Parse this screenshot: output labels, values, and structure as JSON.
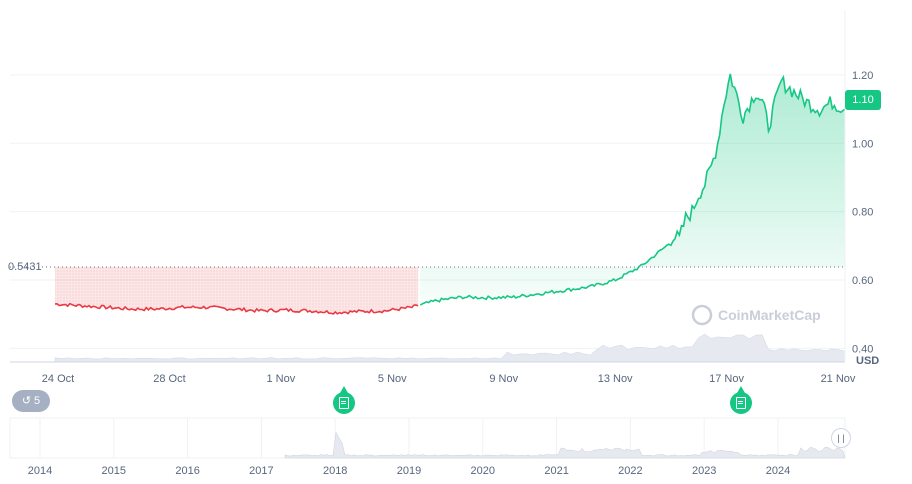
{
  "chart_data": {
    "type": "line",
    "unit": "USD",
    "base_price": "0.5431",
    "current_price": "1.10",
    "y_ticks": [
      "0.40",
      "0.60",
      "0.80",
      "1.00",
      "1.20"
    ],
    "ylim": [
      0.36,
      1.39
    ],
    "x_ticks": [
      "24 Oct",
      "28 Oct",
      "1 Nov",
      "5 Nov",
      "9 Nov",
      "13 Nov",
      "17 Nov",
      "21 Nov"
    ],
    "series": [
      {
        "x": [
          0,
          2,
          4,
          6,
          8,
          10,
          12,
          14,
          16,
          18,
          20,
          22,
          24,
          26,
          28,
          29,
          30,
          32,
          34,
          36,
          38,
          40,
          42,
          44,
          46,
          47,
          48,
          48.5,
          49,
          49.5,
          50,
          50.5,
          51,
          51.5,
          52,
          52.5,
          53,
          54,
          55,
          55.5,
          56,
          57,
          58,
          59,
          60,
          61,
          62
        ],
        "values": [
          0.53,
          0.525,
          0.52,
          0.515,
          0.515,
          0.52,
          0.52,
          0.515,
          0.51,
          0.512,
          0.51,
          0.505,
          0.508,
          0.51,
          0.52,
          0.53,
          0.54,
          0.55,
          0.548,
          0.55,
          0.56,
          0.57,
          0.58,
          0.6,
          0.64,
          0.67,
          0.7,
          0.73,
          0.72,
          0.78,
          0.8,
          0.85,
          0.88,
          0.93,
          1.0,
          1.12,
          1.2,
          1.08,
          1.15,
          1.12,
          1.05,
          1.18,
          1.15,
          1.12,
          1.1,
          1.12,
          1.1
        ]
      }
    ],
    "volume_visible": true,
    "watermark": "CoinMarketCap",
    "history_count": "5",
    "overview_years": [
      "2014",
      "2015",
      "2016",
      "2017",
      "2018",
      "2019",
      "2020",
      "2021",
      "2022",
      "2023",
      "2024"
    ],
    "colors": {
      "up": "#16c784",
      "down": "#ea3943",
      "axis_text": "#58667e",
      "grid": "#eff2f5"
    }
  }
}
